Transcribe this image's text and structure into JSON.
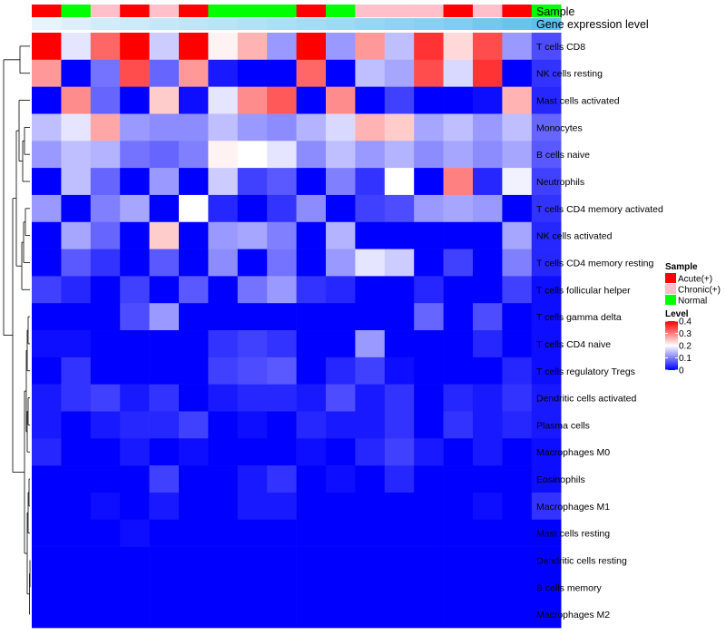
{
  "chart_data": {
    "type": "heatmap",
    "annotation_tracks": [
      "Sample",
      "Gene expression level"
    ],
    "sample_groups": [
      "Acute",
      "Normal",
      "Chronic",
      "Acute",
      "Chronic",
      "Acute",
      "Normal",
      "Normal",
      "Normal",
      "Acute",
      "Normal",
      "Chronic",
      "Chronic",
      "Chronic",
      "Acute",
      "Chronic",
      "Acute",
      "Normal"
    ],
    "gene_expression_level": [
      0.05,
      0.12,
      0.18,
      0.22,
      0.26,
      0.3,
      0.34,
      0.38,
      0.42,
      0.46,
      0.5,
      0.55,
      0.6,
      0.65,
      0.7,
      0.78,
      0.85,
      0.92
    ],
    "rows": [
      "T cells CD8",
      "NK cells resting",
      "Mast cells activated",
      "Monocytes",
      "B cells naive",
      "Neutrophils",
      "T cells CD4 memory activated",
      "NK cells activated",
      "T cells CD4 memory resting",
      "T cells follicular helper",
      "T cells gamma delta",
      "T cells CD4 naive",
      "T cells regulatory  Tregs",
      "Dendritic cells activated",
      "Plasma cells",
      "Macrophages M0",
      "Eosinophils",
      "Macrophages M1",
      "Mast cells resting",
      "Dendritic cells resting",
      "B cells memory",
      "Macrophages M2"
    ],
    "values": [
      [
        0.4,
        0.18,
        0.32,
        0.4,
        0.16,
        0.4,
        0.21,
        0.26,
        0.12,
        0.4,
        0.12,
        0.28,
        0.15,
        0.36,
        0.23,
        0.34,
        0.12,
        0.06
      ],
      [
        0.28,
        0.0,
        0.09,
        0.34,
        0.08,
        0.28,
        0.02,
        0.0,
        0.0,
        0.32,
        0.0,
        0.15,
        0.13,
        0.34,
        0.17,
        0.36,
        0.0,
        0.04
      ],
      [
        0.0,
        0.29,
        0.08,
        0.0,
        0.24,
        0.01,
        0.18,
        0.29,
        0.33,
        0.0,
        0.29,
        0.0,
        0.05,
        0.0,
        0.0,
        0.01,
        0.26,
        0.03
      ],
      [
        0.15,
        0.18,
        0.27,
        0.12,
        0.11,
        0.11,
        0.15,
        0.12,
        0.11,
        0.14,
        0.17,
        0.26,
        0.24,
        0.13,
        0.15,
        0.12,
        0.15,
        0.08
      ],
      [
        0.12,
        0.15,
        0.14,
        0.09,
        0.08,
        0.1,
        0.21,
        0.2,
        0.18,
        0.11,
        0.15,
        0.12,
        0.14,
        0.11,
        0.13,
        0.11,
        0.13,
        0.07
      ],
      [
        0.0,
        0.15,
        0.08,
        0.0,
        0.12,
        0.0,
        0.16,
        0.05,
        0.07,
        0.0,
        0.1,
        0.04,
        0.2,
        0.0,
        0.3,
        0.03,
        0.19,
        0.05
      ],
      [
        0.12,
        0.0,
        0.1,
        0.13,
        0.0,
        0.2,
        0.03,
        0.0,
        0.04,
        0.11,
        0.0,
        0.05,
        0.06,
        0.12,
        0.13,
        0.12,
        0.0,
        0.04
      ],
      [
        0.0,
        0.13,
        0.08,
        0.0,
        0.24,
        0.0,
        0.12,
        0.13,
        0.1,
        0.0,
        0.14,
        0.0,
        0.0,
        0.0,
        0.0,
        0.0,
        0.13,
        0.03
      ],
      [
        0.0,
        0.07,
        0.04,
        0.0,
        0.07,
        0.0,
        0.11,
        0.0,
        0.09,
        0.0,
        0.12,
        0.18,
        0.16,
        0.0,
        0.05,
        0.0,
        0.1,
        0.03
      ],
      [
        0.05,
        0.03,
        0.0,
        0.05,
        0.0,
        0.07,
        0.0,
        0.09,
        0.12,
        0.04,
        0.03,
        0.0,
        0.0,
        0.03,
        0.0,
        0.0,
        0.05,
        0.01
      ],
      [
        0.0,
        0.0,
        0.0,
        0.06,
        0.12,
        0.0,
        0.0,
        0.0,
        0.0,
        0.0,
        0.0,
        0.0,
        0.0,
        0.08,
        0.0,
        0.06,
        0.0,
        0.01
      ],
      [
        0.01,
        0.01,
        0.0,
        0.0,
        0.0,
        0.0,
        0.04,
        0.05,
        0.04,
        0.0,
        0.0,
        0.12,
        0.0,
        0.0,
        0.0,
        0.03,
        0.0,
        0.01
      ],
      [
        0.0,
        0.04,
        0.0,
        0.0,
        0.0,
        0.0,
        0.05,
        0.06,
        0.07,
        0.0,
        0.03,
        0.05,
        0.01,
        0.0,
        0.0,
        0.0,
        0.03,
        0.01
      ],
      [
        0.02,
        0.04,
        0.05,
        0.02,
        0.04,
        0.0,
        0.02,
        0.03,
        0.03,
        0.02,
        0.06,
        0.02,
        0.04,
        0.0,
        0.03,
        0.02,
        0.04,
        0.02
      ],
      [
        0.02,
        0.0,
        0.02,
        0.03,
        0.03,
        0.05,
        0.0,
        0.01,
        0.0,
        0.03,
        0.02,
        0.02,
        0.04,
        0.0,
        0.04,
        0.02,
        0.03,
        0.02
      ],
      [
        0.03,
        0.0,
        0.0,
        0.02,
        0.0,
        0.01,
        0.0,
        0.0,
        0.0,
        0.01,
        0.0,
        0.03,
        0.05,
        0.02,
        0.0,
        0.02,
        0.0,
        0.01
      ],
      [
        0.0,
        0.0,
        0.0,
        0.0,
        0.05,
        0.0,
        0.0,
        0.02,
        0.04,
        0.0,
        0.01,
        0.0,
        0.03,
        0.0,
        0.0,
        0.0,
        0.0,
        0.01
      ],
      [
        0.0,
        0.0,
        0.01,
        0.0,
        0.02,
        0.0,
        0.0,
        0.02,
        0.02,
        0.0,
        0.0,
        0.0,
        0.0,
        0.0,
        0.0,
        0.01,
        0.0,
        0.04
      ],
      [
        0.0,
        0.0,
        0.0,
        0.01,
        0.0,
        0.0,
        0.0,
        0.0,
        0.0,
        0.0,
        0.0,
        0.0,
        0.0,
        0.0,
        0.0,
        0.0,
        0.0,
        0.0
      ],
      [
        0.0,
        0.0,
        0.0,
        0.0,
        0.0,
        0.0,
        0.0,
        0.0,
        0.0,
        0.0,
        0.0,
        0.0,
        0.0,
        0.0,
        0.0,
        0.0,
        0.0,
        0.0
      ],
      [
        0.0,
        0.0,
        0.0,
        0.0,
        0.0,
        0.0,
        0.0,
        0.0,
        0.0,
        0.0,
        0.0,
        0.0,
        0.0,
        0.0,
        0.0,
        0.0,
        0.0,
        0.0
      ],
      [
        0.0,
        0.0,
        0.0,
        0.0,
        0.0,
        0.0,
        0.0,
        0.0,
        0.0,
        0.0,
        0.0,
        0.0,
        0.0,
        0.0,
        0.0,
        0.0,
        0.0,
        0.0
      ]
    ],
    "color_scale": {
      "low": "#0000ff",
      "mid": "#ffffff",
      "high": "#ff0000",
      "min": 0,
      "mid_value": 0.2,
      "max": 0.4
    },
    "group_colors": {
      "Acute": "#ff0000",
      "Chronic": "#ffc0cb",
      "Normal": "#00ff00"
    },
    "expression_colors": {
      "low": "#e8f4fb",
      "high": "#5bc0ec"
    },
    "legend": {
      "sample_title": "Sample",
      "sample_items": [
        {
          "group": "Acute",
          "label": "Acute(+)"
        },
        {
          "group": "Chronic",
          "label": "Chronic(+)"
        },
        {
          "group": "Normal",
          "label": "Normal"
        }
      ],
      "level_title": "Level",
      "level_ticks": [
        "0.4",
        "0.3",
        "0.2",
        "0.1",
        "0"
      ],
      "level_tick_values": [
        0.4,
        0.3,
        0.2,
        0.1,
        0
      ]
    },
    "dendrogram": "hierarchical clustering of cell types (rows)"
  }
}
